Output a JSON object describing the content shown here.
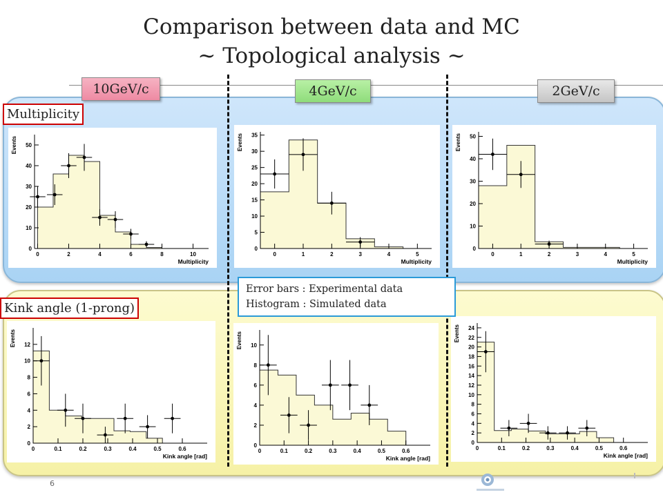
{
  "slide": {
    "title_line1": "Comparison between data and MC",
    "title_line2": "~ Topological analysis ~",
    "page_number": "6"
  },
  "momentum_tags": [
    "10GeV/c",
    "4GeV/c",
    "2GeV/c"
  ],
  "row_labels": {
    "multiplicity": "Multiplicity",
    "kink": "Kink angle (1-prong)"
  },
  "legend": {
    "line1": "Error bars : Experimental  data",
    "line2": "Histogram : Simulated data"
  },
  "colors": {
    "hist_fill": "#fbf9d6",
    "blue_band": "#b9dbf7",
    "yellow_band": "#f8f3b4",
    "tag_red_border": "#cc0000",
    "legend_border": "#2a9ad8"
  },
  "chart_data": [
    {
      "type": "bar",
      "panel": "10GeV/c multiplicity",
      "xlabel": "Multiplicity",
      "ylabel": "Events",
      "xlim": [
        -0.2,
        11
      ],
      "ylim": [
        0,
        55
      ],
      "xticks": [
        0,
        2,
        4,
        6,
        8,
        10
      ],
      "yticks": [
        0,
        10,
        20,
        30,
        40,
        50
      ],
      "hist_edges": [
        0,
        1,
        2,
        3,
        4,
        5,
        6,
        7,
        8,
        9,
        10,
        11
      ],
      "hist_values": [
        20,
        36,
        45,
        42,
        16,
        8,
        2,
        0.5,
        0,
        0,
        0
      ],
      "points": [
        {
          "x": 0,
          "y": 25,
          "xerr": 0.5,
          "yerr": 5
        },
        {
          "x": 1.1,
          "y": 26,
          "xerr": 0.5,
          "yerr": 5
        },
        {
          "x": 2,
          "y": 40,
          "xerr": 0.5,
          "yerr": 6
        },
        {
          "x": 3,
          "y": 44,
          "xerr": 0.5,
          "yerr": 6.5
        },
        {
          "x": 4,
          "y": 15,
          "xerr": 0.5,
          "yerr": 4
        },
        {
          "x": 5,
          "y": 14,
          "xerr": 0.5,
          "yerr": 4
        },
        {
          "x": 6,
          "y": 7,
          "xerr": 0.5,
          "yerr": 2.5
        },
        {
          "x": 7,
          "y": 2,
          "xerr": 0.5,
          "yerr": 1.5
        }
      ]
    },
    {
      "type": "bar",
      "panel": "4GeV/c multiplicity",
      "xlabel": "Multiplicity",
      "ylabel": "Events",
      "xlim": [
        -0.5,
        5.5
      ],
      "ylim": [
        0,
        36
      ],
      "xticks": [
        0,
        1,
        2,
        3,
        4,
        5
      ],
      "yticks": [
        0,
        5,
        10,
        15,
        20,
        25,
        30,
        35
      ],
      "hist_edges": [
        -0.5,
        0.5,
        1.5,
        2.5,
        3.5,
        4.5
      ],
      "hist_values": [
        17.5,
        33.5,
        14,
        3,
        0.5
      ],
      "points": [
        {
          "x": 0,
          "y": 23,
          "xerr": 0.5,
          "yerr": 4.5
        },
        {
          "x": 1,
          "y": 29,
          "xerr": 0.5,
          "yerr": 5
        },
        {
          "x": 2,
          "y": 14,
          "xerr": 0.5,
          "yerr": 3.5
        },
        {
          "x": 3,
          "y": 2,
          "xerr": 0.5,
          "yerr": 1.5
        }
      ]
    },
    {
      "type": "bar",
      "panel": "2GeV/c multiplicity",
      "xlabel": "Multiplicity",
      "ylabel": "Events",
      "xlim": [
        -0.5,
        5.5
      ],
      "ylim": [
        0,
        52
      ],
      "xticks": [
        0,
        1,
        2,
        3,
        4,
        5
      ],
      "yticks": [
        0,
        10,
        20,
        30,
        40,
        50
      ],
      "hist_edges": [
        -0.5,
        0.5,
        1.5,
        2.5,
        3.5,
        4.5
      ],
      "hist_values": [
        28,
        46,
        3,
        0.5,
        0.5
      ],
      "points": [
        {
          "x": 0,
          "y": 42,
          "xerr": 0.5,
          "yerr": 7
        },
        {
          "x": 1,
          "y": 33,
          "xerr": 0.5,
          "yerr": 6
        },
        {
          "x": 2,
          "y": 2,
          "xerr": 0.5,
          "yerr": 1.5
        }
      ]
    },
    {
      "type": "bar",
      "panel": "10GeV/c kink angle",
      "xlabel": "Kink angle [rad]",
      "ylabel": "Events",
      "xlim": [
        0,
        0.7
      ],
      "ylim": [
        0,
        14
      ],
      "xticks": [
        0,
        0.1,
        0.2,
        0.3,
        0.4,
        0.5,
        0.6
      ],
      "yticks": [
        0,
        2,
        4,
        6,
        8,
        10,
        12
      ],
      "hist_edges": [
        0,
        0.065,
        0.13,
        0.195,
        0.26,
        0.325,
        0.39,
        0.455,
        0.52
      ],
      "hist_values": [
        11.2,
        4,
        3.3,
        3,
        3,
        1.5,
        1.4,
        0.6
      ],
      "points": [
        {
          "x": 0.033,
          "y": 10,
          "xerr": 0.033,
          "yerr": 3
        },
        {
          "x": 0.13,
          "y": 4,
          "xerr": 0.033,
          "yerr": 2
        },
        {
          "x": 0.2,
          "y": 3,
          "xerr": 0.033,
          "yerr": 1.8
        },
        {
          "x": 0.29,
          "y": 1,
          "xerr": 0.033,
          "yerr": 1
        },
        {
          "x": 0.37,
          "y": 3,
          "xerr": 0.033,
          "yerr": 1.8
        },
        {
          "x": 0.46,
          "y": 2,
          "xerr": 0.033,
          "yerr": 1.4
        },
        {
          "x": 0.56,
          "y": 3,
          "xerr": 0.033,
          "yerr": 1.8
        }
      ]
    },
    {
      "type": "bar",
      "panel": "4GeV/c kink angle",
      "xlabel": "Kink angle [rad]",
      "ylabel": "Events",
      "xlim": [
        0,
        0.7
      ],
      "ylim": [
        0,
        11.5
      ],
      "xticks": [
        0,
        0.1,
        0.2,
        0.3,
        0.4,
        0.5,
        0.6
      ],
      "yticks": [
        0,
        2,
        4,
        6,
        8,
        10
      ],
      "hist_edges": [
        0,
        0.075,
        0.15,
        0.225,
        0.3,
        0.375,
        0.45,
        0.525,
        0.6
      ],
      "hist_values": [
        7.5,
        7,
        5,
        4,
        2.6,
        3.2,
        2.6,
        1.4
      ],
      "points": [
        {
          "x": 0.035,
          "y": 8,
          "xerr": 0.035,
          "yerr": 3
        },
        {
          "x": 0.12,
          "y": 3,
          "xerr": 0.035,
          "yerr": 1.8
        },
        {
          "x": 0.2,
          "y": 2,
          "xerr": 0.035,
          "yerr": 1.5
        },
        {
          "x": 0.29,
          "y": 6,
          "xerr": 0.035,
          "yerr": 2.5
        },
        {
          "x": 0.37,
          "y": 6,
          "xerr": 0.035,
          "yerr": 2.5
        },
        {
          "x": 0.45,
          "y": 4,
          "xerr": 0.035,
          "yerr": 2
        }
      ]
    },
    {
      "type": "bar",
      "panel": "2GeV/c kink angle",
      "xlabel": "Kink angle [rad]",
      "ylabel": "Events",
      "xlim": [
        0,
        0.7
      ],
      "ylim": [
        0,
        25
      ],
      "xticks": [
        0,
        0.1,
        0.2,
        0.3,
        0.4,
        0.5,
        0.6
      ],
      "yticks": [
        0,
        2,
        4,
        6,
        8,
        10,
        12,
        14,
        16,
        18,
        20,
        22,
        24
      ],
      "hist_edges": [
        0,
        0.07,
        0.14,
        0.21,
        0.28,
        0.35,
        0.42,
        0.49,
        0.56
      ],
      "hist_values": [
        21,
        2.5,
        2.8,
        2.4,
        1.8,
        1.8,
        2.3,
        1
      ],
      "points": [
        {
          "x": 0.035,
          "y": 19,
          "xerr": 0.035,
          "yerr": 4.3
        },
        {
          "x": 0.13,
          "y": 3,
          "xerr": 0.035,
          "yerr": 1.7
        },
        {
          "x": 0.21,
          "y": 4,
          "xerr": 0.035,
          "yerr": 2
        },
        {
          "x": 0.29,
          "y": 2,
          "xerr": 0.035,
          "yerr": 1.4
        },
        {
          "x": 0.37,
          "y": 2,
          "xerr": 0.035,
          "yerr": 1.4
        },
        {
          "x": 0.45,
          "y": 3,
          "xerr": 0.035,
          "yerr": 1.7
        }
      ]
    }
  ]
}
